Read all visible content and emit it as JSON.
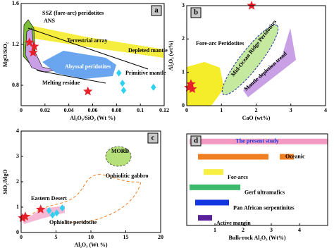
{
  "chart_data": [
    {
      "type": "scatter",
      "panel": "a",
      "xlabel": "Al₂O₃/SiO₂ (Wt %)",
      "ylabel": "MgO/SiO₂",
      "xlim": [
        0,
        0.12
      ],
      "xticks": [
        0,
        0.02,
        0.04,
        0.06,
        0.08,
        0.1,
        0.12
      ],
      "ylim": [
        0.6,
        1.6
      ],
      "yticks": [
        0.8,
        1.2,
        1.6
      ],
      "series": [
        {
          "marker": "star",
          "color": "#e8202a",
          "x": [
            0.007,
            0.011,
            0.01,
            0.056
          ],
          "values": [
            1.22,
            1.18,
            1.12,
            0.74
          ]
        },
        {
          "marker": "diamond",
          "color": "#2fd0f0",
          "x": [
            0.082,
            0.085,
            0.086,
            0.111
          ],
          "values": [
            0.92,
            0.82,
            0.75,
            0.78
          ]
        }
      ],
      "annotations": [
        "SSZ (fore-arc) peridotites",
        "ANS",
        "Terrestrial array",
        "Depleted mantle",
        "Abyssal peridotites",
        "Primitive mantle",
        "Melting residue"
      ]
    },
    {
      "type": "scatter",
      "panel": "b",
      "xlabel": "CaO (wt%)",
      "ylabel": "Al₂O₃ (wt%)",
      "xlim": [
        0,
        4
      ],
      "xticks": [
        0,
        1,
        2,
        3,
        4
      ],
      "ylim": [
        0,
        3
      ],
      "yticks": [
        0,
        1,
        2,
        3
      ],
      "series": [
        {
          "marker": "star",
          "color": "#e8202a",
          "x": [
            0.12,
            0.16,
            0.06,
            1.87
          ],
          "values": [
            0.65,
            0.5,
            0.54,
            3.0
          ]
        }
      ],
      "annotations": [
        "Fore-arc Peridotites",
        "Mid-Ocean Ridge Peridotites",
        "Mantle depletion trend"
      ]
    },
    {
      "type": "scatter",
      "panel": "c",
      "xlabel": "Al₂O₃ (Wt %)",
      "ylabel": "SiO₂/MgO",
      "xlim": [
        0,
        20
      ],
      "xticks": [
        0,
        5,
        10,
        15,
        20
      ],
      "ylim": [
        0,
        4
      ],
      "yticks": [
        0,
        1,
        2,
        3,
        4
      ],
      "series": [
        {
          "marker": "star",
          "color": "#e8202a",
          "x": [
            0.6,
            2.8,
            0.2
          ],
          "values": [
            0.63,
            0.91,
            0.57
          ]
        },
        {
          "marker": "diamond",
          "color": "#2fd0f0",
          "x": [
            4.0,
            5.1,
            5.9,
            4.5
          ],
          "values": [
            0.86,
            0.77,
            0.97,
            0.69
          ]
        }
      ],
      "annotations": [
        "MORB",
        "Ophiolitic gabbro",
        "Eastern Desert",
        "Ophiolite peridotite"
      ]
    },
    {
      "type": "range",
      "panel": "d",
      "xlabel": "Bulk-rock Al₂O₃ (Wt%)",
      "xlim": [
        0,
        5
      ],
      "xticks": [
        1,
        2,
        3,
        4
      ],
      "categories": [
        "The present study",
        "Oceanic",
        "For-arcs",
        "Gerf ultramafics",
        "Pan African serpentinites",
        "Active margin"
      ],
      "colors": [
        "#f49ac1",
        "#f07f22",
        "#f7f040",
        "#3cb96a",
        "#1436e0",
        "#5a1f9a"
      ],
      "segments": [
        [
          [
            0.1,
            5.0
          ]
        ],
        [
          [
            0.4,
            2.9
          ],
          [
            3.3,
            3.8
          ]
        ],
        [
          [
            0.6,
            1.3
          ]
        ],
        [
          [
            0.1,
            1.9
          ]
        ],
        [
          [
            0.3,
            1.5
          ]
        ],
        [
          [
            0.4,
            0.9
          ]
        ]
      ]
    }
  ]
}
